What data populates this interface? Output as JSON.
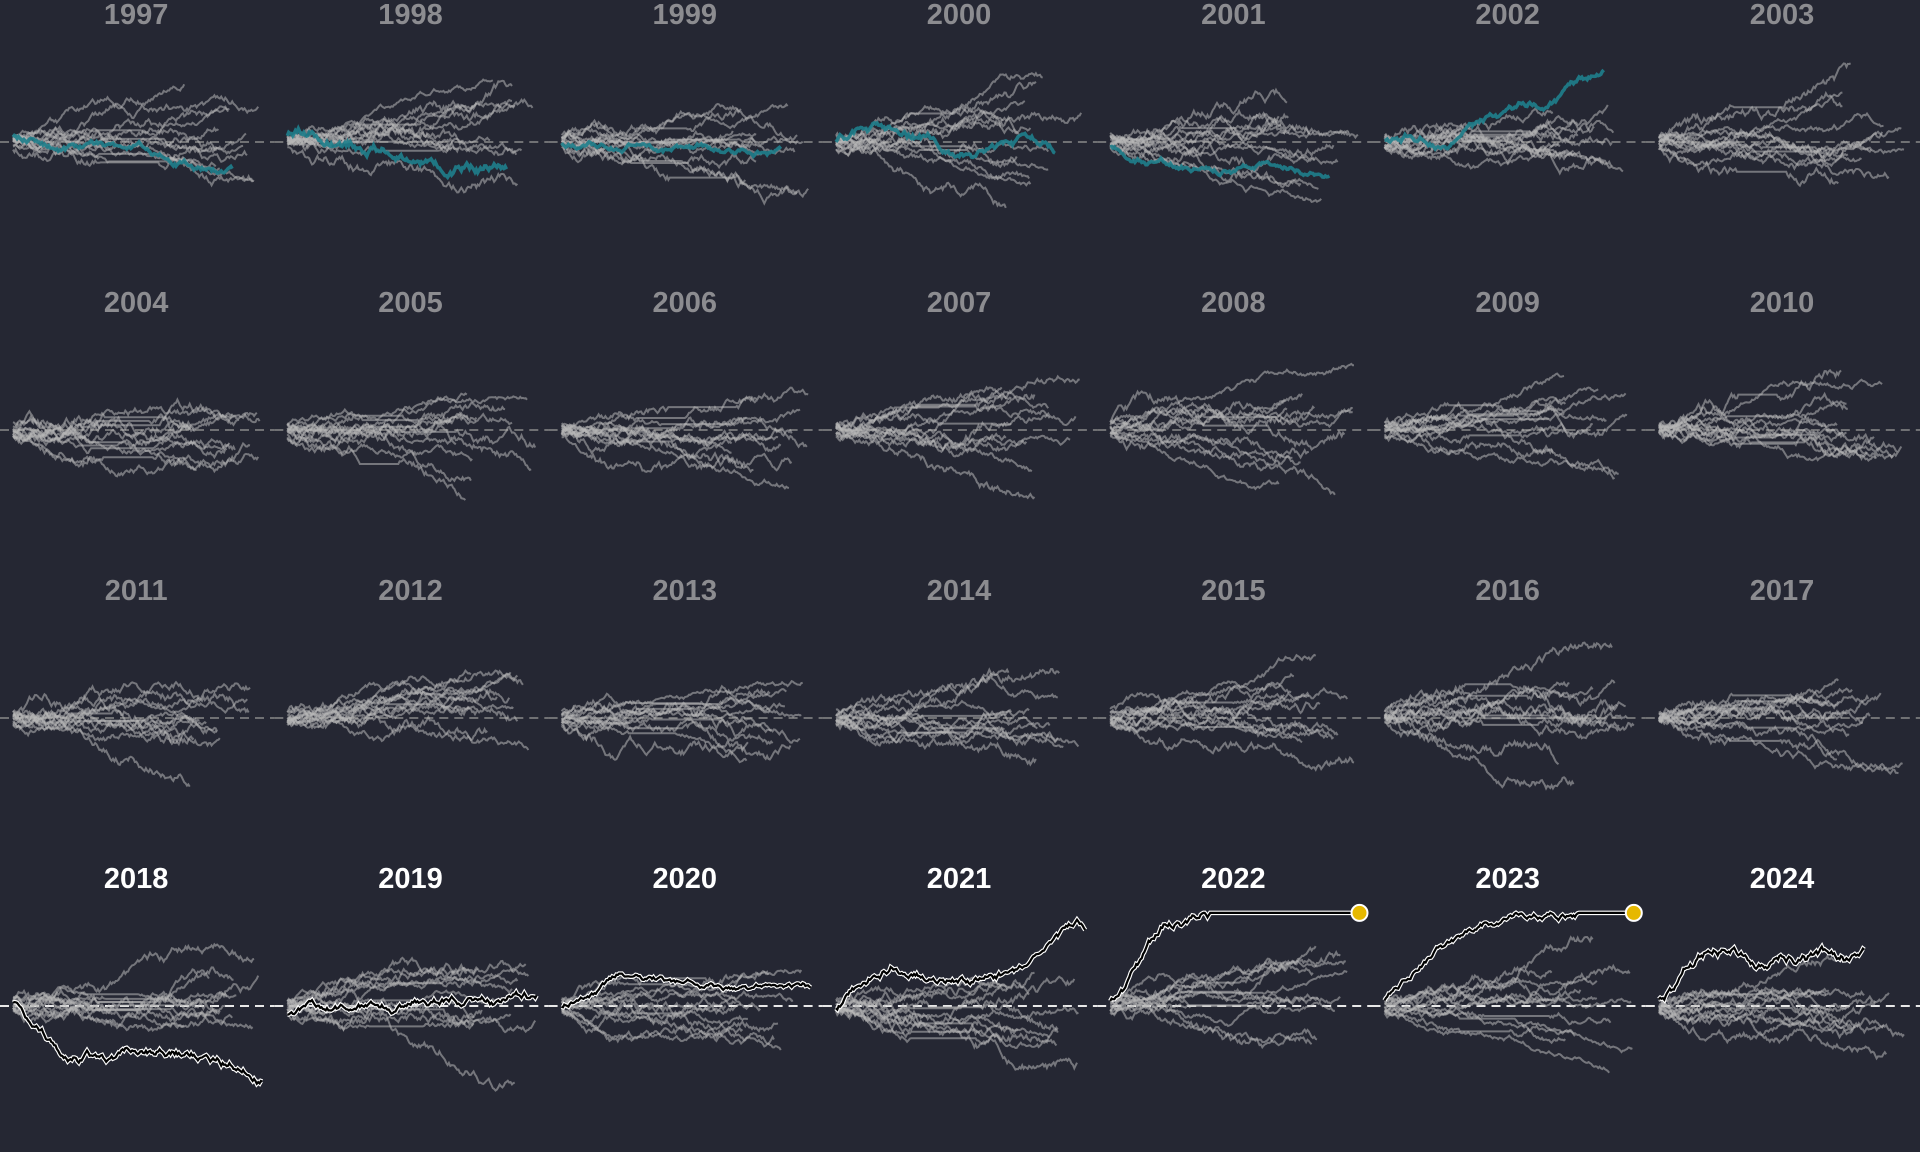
{
  "chart_data": {
    "type": "line",
    "title": "",
    "description_free": true,
    "layout": "small-multiples grid, 7 columns x 4 rows, one panel per year",
    "years": [
      1997,
      1998,
      1999,
      2000,
      2001,
      2002,
      2003,
      2004,
      2005,
      2006,
      2007,
      2008,
      2009,
      2010,
      2011,
      2012,
      2013,
      2014,
      2015,
      2016,
      2017,
      2018,
      2019,
      2020,
      2021,
      2022,
      2023,
      2024
    ],
    "highlighted_recent_years": [
      2018,
      2019,
      2020,
      2021,
      2022,
      2023,
      2024
    ],
    "teal_highlight_years": [
      1997,
      1998,
      1999,
      2000,
      2001,
      2002
    ],
    "end_marker_years": [
      2022,
      2023
    ],
    "lines_per_panel": 13,
    "x_unit": "days of year",
    "xlim": [
      0,
      365
    ],
    "ylim": [
      -1,
      1
    ],
    "baseline": 0,
    "grid": false,
    "colors": {
      "background": "#252733",
      "context_line": "#b8b8b8",
      "teal_line": "#1f7f8c",
      "focus_line": "#000000",
      "focus_outline": "#ffffff",
      "marker": "#e6b800",
      "label_old": "#8c8c90",
      "label_recent": "#ffffff"
    }
  }
}
